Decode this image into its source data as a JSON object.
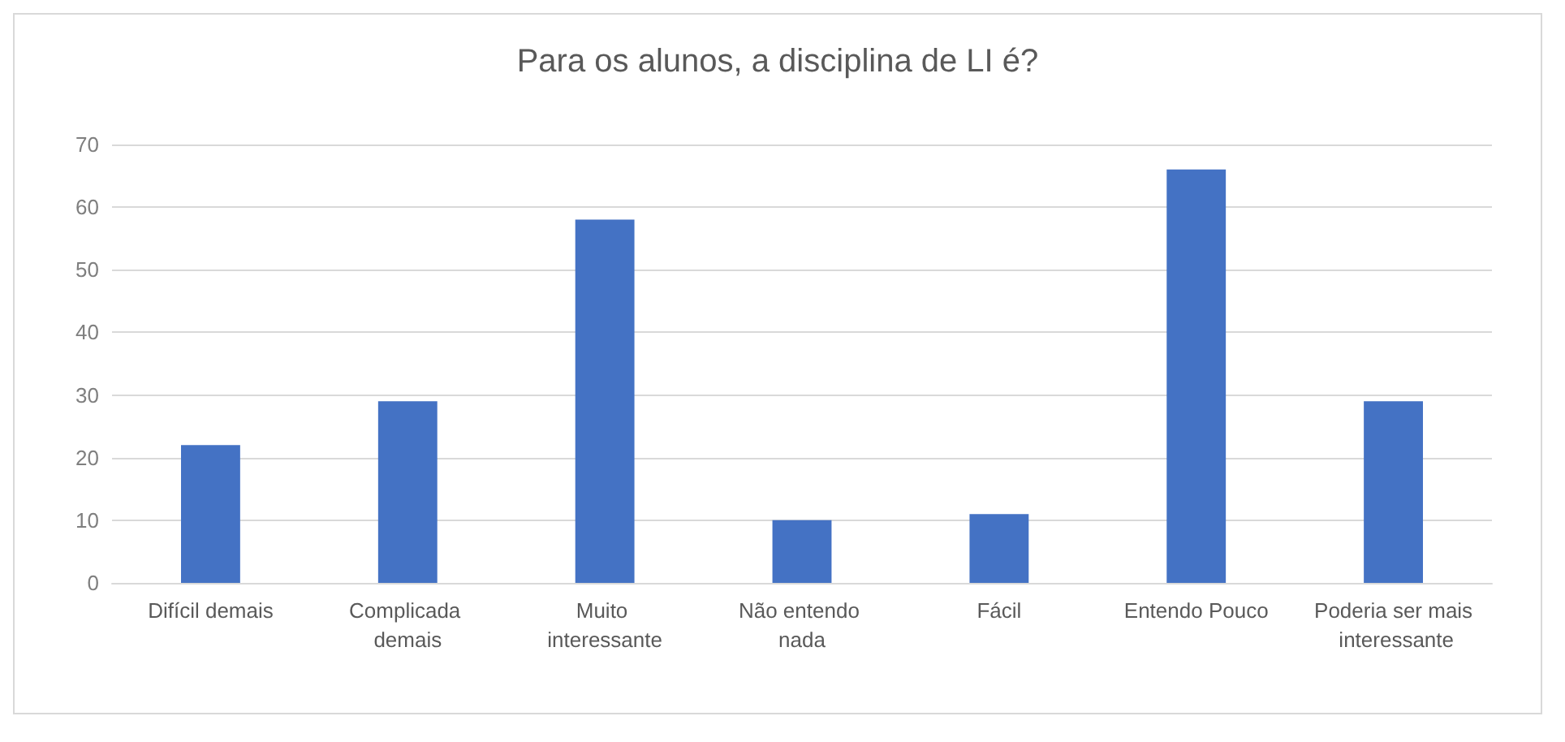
{
  "chart_data": {
    "type": "bar",
    "title": "Para os alunos, a disciplina de LI é?",
    "categories": [
      "Difícil demais",
      "Complicada demais",
      "Muito interessante",
      "Não entendo nada",
      "Fácil",
      "Entendo Pouco",
      "Poderia ser mais interessante"
    ],
    "values": [
      22,
      29,
      58,
      10,
      11,
      66,
      29
    ],
    "color": "#4472c4",
    "ylim": [
      0,
      70
    ],
    "yticks": [
      0,
      10,
      20,
      30,
      40,
      50,
      60,
      70
    ],
    "grid": "y"
  }
}
